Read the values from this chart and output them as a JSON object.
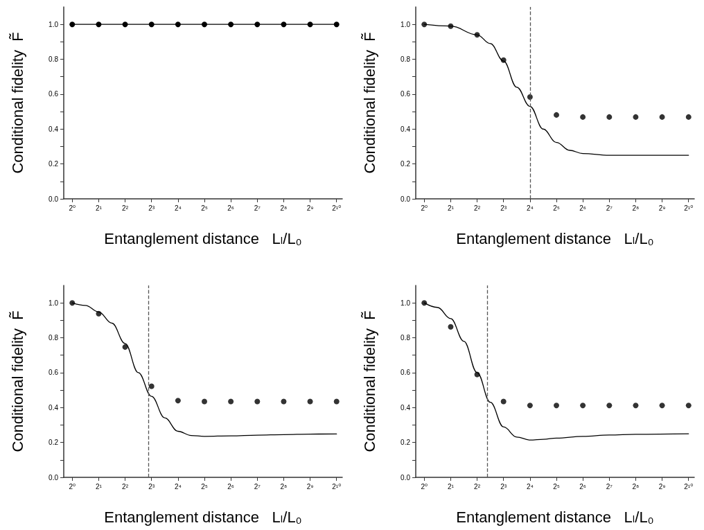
{
  "chart_data": [
    {
      "type": "line",
      "xlabel": "Entanglement distance   Lₗ/L₀",
      "ylabel": "Conditional fidelity  F̃",
      "log": "x",
      "x": [
        1,
        2,
        4,
        8,
        16,
        32,
        64,
        128,
        256,
        512,
        1024
      ],
      "xlim": [
        0.8,
        1190
      ],
      "ylim": [
        0,
        1.1
      ],
      "xticks": [
        {
          "value": 1,
          "label": "2⁰"
        },
        {
          "value": 2,
          "label": "2¹"
        },
        {
          "value": 4,
          "label": "2²"
        },
        {
          "value": 8,
          "label": "2³"
        },
        {
          "value": 16,
          "label": "2⁴"
        },
        {
          "value": 32,
          "label": "2⁵"
        },
        {
          "value": 64,
          "label": "2⁶"
        },
        {
          "value": 128,
          "label": "2⁷"
        },
        {
          "value": 256,
          "label": "2⁸"
        },
        {
          "value": 512,
          "label": "2⁹"
        },
        {
          "value": 1024,
          "label": "2¹⁰"
        }
      ],
      "yticks": [
        {
          "value": 0,
          "label": "0.0"
        },
        {
          "value": 0.1,
          "label": null
        },
        {
          "value": 0.2,
          "label": "0.2"
        },
        {
          "value": 0.3,
          "label": null
        },
        {
          "value": 0.4,
          "label": "0.4"
        },
        {
          "value": 0.5,
          "label": null
        },
        {
          "value": 0.6,
          "label": "0.6"
        },
        {
          "value": 0.7,
          "label": null
        },
        {
          "value": 0.8,
          "label": "0.8"
        },
        {
          "value": 0.9,
          "label": null
        },
        {
          "value": 1.0,
          "label": "1.0"
        }
      ],
      "grid": false,
      "series": [
        {
          "color": "#000000",
          "marker": "circle",
          "values": [
            1,
            1,
            1,
            1,
            1,
            1,
            1,
            1,
            1,
            1,
            1
          ]
        }
      ]
    },
    {
      "type": "scatter",
      "xlabel": "Entanglement distance   Lₗ/L₀",
      "ylabel": "Conditional fidelity  F̃",
      "log": "x",
      "x": [
        1,
        2,
        4,
        8,
        16,
        32,
        64,
        128,
        256,
        512,
        1024
      ],
      "xlim": [
        0.8,
        1190
      ],
      "ylim": [
        0,
        1.1
      ],
      "xticks": [
        {
          "value": 1,
          "label": "2⁰"
        },
        {
          "value": 2,
          "label": "2¹"
        },
        {
          "value": 4,
          "label": "2²"
        },
        {
          "value": 8,
          "label": "2³"
        },
        {
          "value": 16,
          "label": "2⁴"
        },
        {
          "value": 32,
          "label": "2⁵"
        },
        {
          "value": 64,
          "label": "2⁶"
        },
        {
          "value": 128,
          "label": "2⁷"
        },
        {
          "value": 256,
          "label": "2⁸"
        },
        {
          "value": 512,
          "label": "2⁹"
        },
        {
          "value": 1024,
          "label": "2¹⁰"
        }
      ],
      "yticks": [
        {
          "value": 0,
          "label": "0.0"
        },
        {
          "value": 0.1,
          "label": null
        },
        {
          "value": 0.2,
          "label": "0.2"
        },
        {
          "value": 0.3,
          "label": null
        },
        {
          "value": 0.4,
          "label": "0.4"
        },
        {
          "value": 0.5,
          "label": null
        },
        {
          "value": 0.6,
          "label": "0.6"
        },
        {
          "value": 0.7,
          "label": null
        },
        {
          "value": 0.8,
          "label": "0.8"
        },
        {
          "value": 0.9,
          "label": null
        },
        {
          "value": 1.0,
          "label": "1.0"
        }
      ],
      "grid": false,
      "ref_lines": [
        {
          "axis": "x",
          "value": 16,
          "color": "#555555",
          "line_style": "dashed"
        }
      ],
      "series": [
        {
          "color": "#000000",
          "marker": "circle",
          "values": [
            1.0,
            0.99,
            0.94,
            0.795,
            0.584,
            0.481,
            0.469,
            0.469,
            0.469,
            0.469,
            0.469
          ]
        },
        {
          "type": "line",
          "color": "#000000",
          "marker": "none",
          "x": [
            1,
            2,
            4,
            5.657,
            8,
            11.31,
            16,
            22.63,
            32,
            45.25,
            64,
            128,
            256,
            512,
            1024
          ],
          "values": [
            1.0,
            0.99,
            0.94,
            0.89,
            0.79,
            0.64,
            0.53,
            0.4,
            0.323,
            0.278,
            0.26,
            0.25,
            0.25,
            0.25,
            0.25
          ]
        }
      ]
    },
    {
      "type": "scatter",
      "xlabel": "Entanglement distance   Lₗ/L₀",
      "ylabel": "Conditional fidelity  F̃",
      "log": "x",
      "x": [
        1,
        2,
        4,
        8,
        16,
        32,
        64,
        128,
        256,
        512,
        1024
      ],
      "xlim": [
        0.8,
        1190
      ],
      "ylim": [
        0,
        1.1
      ],
      "xticks": [
        {
          "value": 1,
          "label": "2⁰"
        },
        {
          "value": 2,
          "label": "2¹"
        },
        {
          "value": 4,
          "label": "2²"
        },
        {
          "value": 8,
          "label": "2³"
        },
        {
          "value": 16,
          "label": "2⁴"
        },
        {
          "value": 32,
          "label": "2⁵"
        },
        {
          "value": 64,
          "label": "2⁶"
        },
        {
          "value": 128,
          "label": "2⁷"
        },
        {
          "value": 256,
          "label": "2⁸"
        },
        {
          "value": 512,
          "label": "2⁹"
        },
        {
          "value": 1024,
          "label": "2¹⁰"
        }
      ],
      "yticks": [
        {
          "value": 0,
          "label": "0.0"
        },
        {
          "value": 0.1,
          "label": null
        },
        {
          "value": 0.2,
          "label": "0.2"
        },
        {
          "value": 0.3,
          "label": null
        },
        {
          "value": 0.4,
          "label": "0.4"
        },
        {
          "value": 0.5,
          "label": null
        },
        {
          "value": 0.6,
          "label": "0.6"
        },
        {
          "value": 0.7,
          "label": null
        },
        {
          "value": 0.8,
          "label": "0.8"
        },
        {
          "value": 0.9,
          "label": null
        },
        {
          "value": 1.0,
          "label": "1.0"
        }
      ],
      "grid": false,
      "ref_lines": [
        {
          "axis": "x",
          "value": 7.4,
          "color": "#555555",
          "line_style": "dashed"
        }
      ],
      "series": [
        {
          "color": "#000000",
          "marker": "circle",
          "values": [
            1.0,
            0.938,
            0.747,
            0.522,
            0.44,
            0.435,
            0.435,
            0.435,
            0.435,
            0.435,
            0.435
          ]
        },
        {
          "type": "line",
          "color": "#000000",
          "marker": "none",
          "x": [
            1,
            1.414,
            2,
            2.828,
            4,
            5.657,
            8,
            11.31,
            16,
            22.63,
            32,
            64,
            128,
            256,
            512,
            1024
          ],
          "values": [
            1.0,
            0.985,
            0.948,
            0.884,
            0.767,
            0.6,
            0.464,
            0.341,
            0.264,
            0.24,
            0.235,
            0.238,
            0.242,
            0.245,
            0.248,
            0.249
          ]
        }
      ]
    },
    {
      "type": "scatter",
      "xlabel": "Entanglement distance   Lₗ/L₀",
      "ylabel": "Conditional fidelity  F̃",
      "log": "x",
      "x": [
        1,
        2,
        4,
        8,
        16,
        32,
        64,
        128,
        256,
        512,
        1024
      ],
      "xlim": [
        0.8,
        1190
      ],
      "ylim": [
        0,
        1.1
      ],
      "xticks": [
        {
          "value": 1,
          "label": "2⁰"
        },
        {
          "value": 2,
          "label": "2¹"
        },
        {
          "value": 4,
          "label": "2²"
        },
        {
          "value": 8,
          "label": "2³"
        },
        {
          "value": 16,
          "label": "2⁴"
        },
        {
          "value": 32,
          "label": "2⁵"
        },
        {
          "value": 64,
          "label": "2⁶"
        },
        {
          "value": 128,
          "label": "2⁷"
        },
        {
          "value": 256,
          "label": "2⁸"
        },
        {
          "value": 512,
          "label": "2⁹"
        },
        {
          "value": 1024,
          "label": "2¹⁰"
        }
      ],
      "yticks": [
        {
          "value": 0,
          "label": "0.0"
        },
        {
          "value": 0.1,
          "label": null
        },
        {
          "value": 0.2,
          "label": "0.2"
        },
        {
          "value": 0.3,
          "label": null
        },
        {
          "value": 0.4,
          "label": "0.4"
        },
        {
          "value": 0.5,
          "label": null
        },
        {
          "value": 0.6,
          "label": "0.6"
        },
        {
          "value": 0.7,
          "label": null
        },
        {
          "value": 0.8,
          "label": "0.8"
        },
        {
          "value": 0.9,
          "label": null
        },
        {
          "value": 1.0,
          "label": "1.0"
        }
      ],
      "grid": false,
      "ref_lines": [
        {
          "axis": "x",
          "value": 5.2,
          "color": "#555555",
          "line_style": "dashed"
        }
      ],
      "series": [
        {
          "color": "#000000",
          "marker": "circle",
          "values": [
            1.0,
            0.863,
            0.59,
            0.435,
            0.412,
            0.412,
            0.412,
            0.412,
            0.412,
            0.412,
            0.412
          ]
        },
        {
          "type": "line",
          "color": "#000000",
          "marker": "none",
          "x": [
            1,
            1.414,
            2,
            2.828,
            4,
            5.657,
            8,
            11.31,
            16,
            22.63,
            32,
            64,
            128,
            256,
            1024
          ],
          "values": [
            1.0,
            0.974,
            0.91,
            0.78,
            0.6,
            0.43,
            0.289,
            0.231,
            0.214,
            0.218,
            0.225,
            0.235,
            0.243,
            0.247,
            0.25
          ]
        }
      ]
    }
  ]
}
